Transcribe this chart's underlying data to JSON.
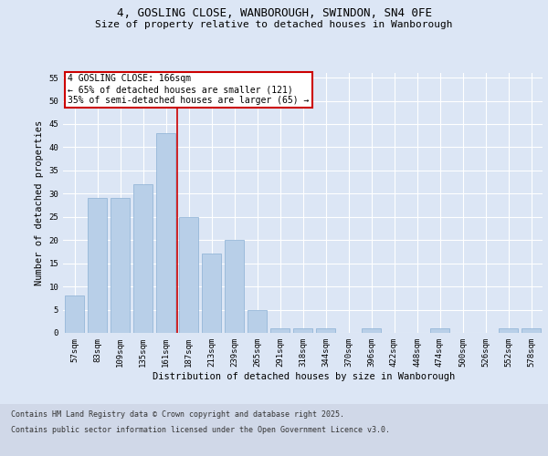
{
  "title1": "4, GOSLING CLOSE, WANBOROUGH, SWINDON, SN4 0FE",
  "title2": "Size of property relative to detached houses in Wanborough",
  "xlabel": "Distribution of detached houses by size in Wanborough",
  "ylabel": "Number of detached properties",
  "categories": [
    "57sqm",
    "83sqm",
    "109sqm",
    "135sqm",
    "161sqm",
    "187sqm",
    "213sqm",
    "239sqm",
    "265sqm",
    "291sqm",
    "318sqm",
    "344sqm",
    "370sqm",
    "396sqm",
    "422sqm",
    "448sqm",
    "474sqm",
    "500sqm",
    "526sqm",
    "552sqm",
    "578sqm"
  ],
  "values": [
    8,
    29,
    29,
    32,
    43,
    25,
    17,
    20,
    5,
    1,
    1,
    1,
    0,
    1,
    0,
    0,
    1,
    0,
    0,
    1,
    1
  ],
  "bar_color": "#b8cfe8",
  "bar_edge_color": "#8aafd4",
  "vline_x": 4.5,
  "annotation_line1": "4 GOSLING CLOSE: 166sqm",
  "annotation_line2": "← 65% of detached houses are smaller (121)",
  "annotation_line3": "35% of semi-detached houses are larger (65) →",
  "annotation_box_color": "#ffffff",
  "annotation_box_edge": "#cc0000",
  "vline_color": "#cc0000",
  "ylim": [
    0,
    56
  ],
  "yticks": [
    0,
    5,
    10,
    15,
    20,
    25,
    30,
    35,
    40,
    45,
    50,
    55
  ],
  "footnote1": "Contains HM Land Registry data © Crown copyright and database right 2025.",
  "footnote2": "Contains public sector information licensed under the Open Government Licence v3.0.",
  "bg_color": "#dce6f5",
  "plot_bg_color": "#dce6f5",
  "grid_color": "#ffffff",
  "fig_bg_color": "#dce6f5",
  "footer_bg_color": "#d0d8e8",
  "title_fontsize": 9,
  "subtitle_fontsize": 8,
  "axis_label_fontsize": 7.5,
  "tick_fontsize": 6.5,
  "annotation_fontsize": 7,
  "footnote_fontsize": 6
}
